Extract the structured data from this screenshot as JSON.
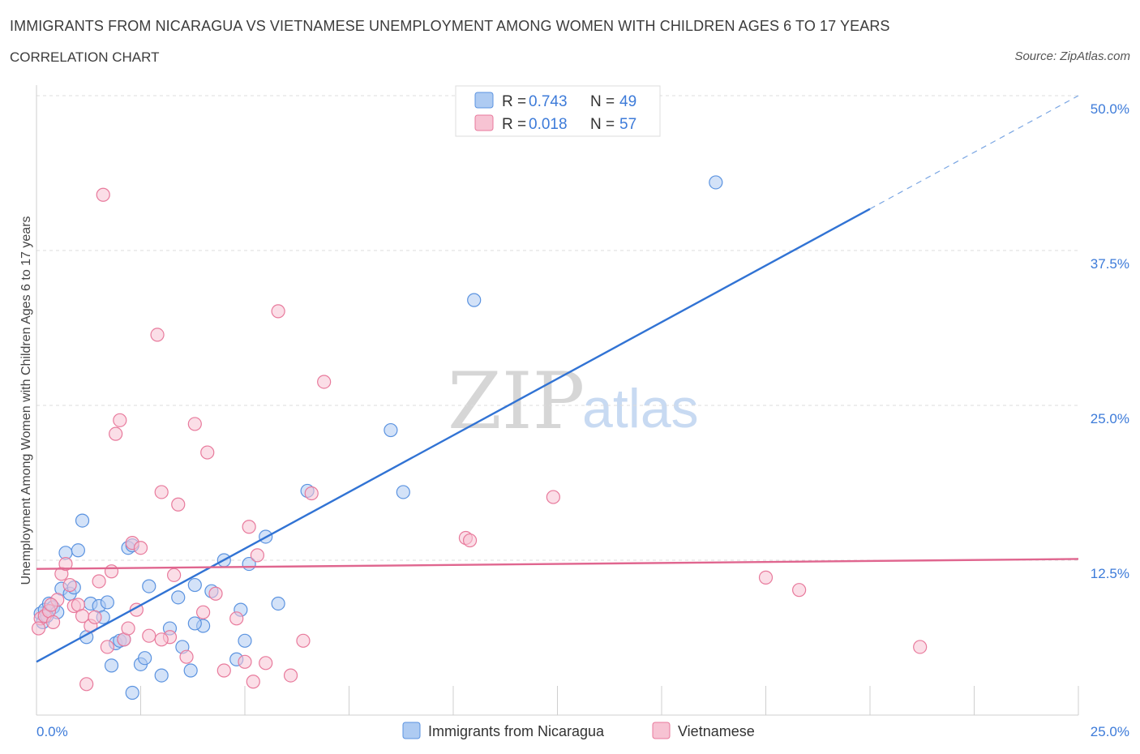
{
  "header": {
    "title": "IMMIGRANTS FROM NICARAGUA VS VIETNAMESE UNEMPLOYMENT AMONG WOMEN WITH CHILDREN AGES 6 TO 17 YEARS",
    "subtitle": "CORRELATION CHART",
    "source": "Source: ZipAtlas.com"
  },
  "watermark": {
    "zip": "ZIP",
    "atlas": "atlas"
  },
  "legend": {
    "r_label": "R = ",
    "n_label": "N = ",
    "rows": [
      {
        "r": "0.743",
        "n": "49"
      },
      {
        "r": "0.018",
        "n": "57"
      }
    ]
  },
  "chart_data": {
    "type": "scatter",
    "title": "IMMIGRANTS FROM NICARAGUA VS VIETNAMESE UNEMPLOYMENT AMONG WOMEN WITH CHILDREN AGES 6 TO 17 YEARS",
    "xlabel": "",
    "ylabel": "Unemployment Among Women with Children Ages 6 to 17 years",
    "xlim": [
      0,
      25
    ],
    "ylim": [
      0,
      50
    ],
    "x_tick_labels": [
      "0.0%",
      "25.0%"
    ],
    "y_tick_labels": [
      "12.5%",
      "25.0%",
      "37.5%",
      "50.0%"
    ],
    "y_tick_values": [
      12.5,
      25,
      37.5,
      50
    ],
    "legend_position": "top-center",
    "series": [
      {
        "name": "Immigrants from Nicaragua",
        "color": "#5b93e0",
        "fill": "#aecbf2",
        "r": 0.743,
        "n": 49,
        "trend": {
          "x0": 0,
          "y0": 4.3,
          "x1": 25,
          "y1": 50,
          "solid_until_x": 20
        },
        "points": [
          [
            0.1,
            8.2
          ],
          [
            0.2,
            8.5
          ],
          [
            0.3,
            9.0
          ],
          [
            0.4,
            8.7
          ],
          [
            0.5,
            8.3
          ],
          [
            0.6,
            10.2
          ],
          [
            0.7,
            13.1
          ],
          [
            0.8,
            9.8
          ],
          [
            0.9,
            10.3
          ],
          [
            1.0,
            13.3
          ],
          [
            1.1,
            15.7
          ],
          [
            1.2,
            6.3
          ],
          [
            1.3,
            9.0
          ],
          [
            1.5,
            8.8
          ],
          [
            1.6,
            7.9
          ],
          [
            1.7,
            9.1
          ],
          [
            1.8,
            4.0
          ],
          [
            1.9,
            5.8
          ],
          [
            2.0,
            6.0
          ],
          [
            2.1,
            6.1
          ],
          [
            2.2,
            13.5
          ],
          [
            2.3,
            1.8
          ],
          [
            2.5,
            4.1
          ],
          [
            2.6,
            4.6
          ],
          [
            2.7,
            10.4
          ],
          [
            3.0,
            3.2
          ],
          [
            3.2,
            7.0
          ],
          [
            3.4,
            9.5
          ],
          [
            3.5,
            5.5
          ],
          [
            3.7,
            3.6
          ],
          [
            3.8,
            10.5
          ],
          [
            4.0,
            7.2
          ],
          [
            4.5,
            12.5
          ],
          [
            4.8,
            4.5
          ],
          [
            4.9,
            8.5
          ],
          [
            5.0,
            6.0
          ],
          [
            5.1,
            12.2
          ],
          [
            5.5,
            14.4
          ],
          [
            5.8,
            9.0
          ],
          [
            6.5,
            18.1
          ],
          [
            8.5,
            23.0
          ],
          [
            8.8,
            18.0
          ],
          [
            10.5,
            33.5
          ],
          [
            16.3,
            43.0
          ],
          [
            0.15,
            7.5
          ],
          [
            0.25,
            8.0
          ],
          [
            3.8,
            7.4
          ],
          [
            2.3,
            13.7
          ],
          [
            4.2,
            10.0
          ]
        ]
      },
      {
        "name": "Vietnamese",
        "color": "#e87a9c",
        "fill": "#f7c3d3",
        "r": 0.018,
        "n": 57,
        "trend": {
          "x0": 0,
          "y0": 11.8,
          "x1": 25,
          "y1": 12.6
        },
        "points": [
          [
            0.1,
            7.8
          ],
          [
            0.2,
            8.0
          ],
          [
            0.3,
            8.4
          ],
          [
            0.4,
            7.5
          ],
          [
            0.5,
            9.3
          ],
          [
            0.6,
            11.4
          ],
          [
            0.7,
            12.2
          ],
          [
            0.8,
            10.5
          ],
          [
            0.9,
            8.8
          ],
          [
            1.0,
            8.9
          ],
          [
            1.1,
            8.0
          ],
          [
            1.2,
            2.5
          ],
          [
            1.3,
            7.2
          ],
          [
            1.4,
            7.9
          ],
          [
            1.5,
            10.8
          ],
          [
            1.6,
            42.0
          ],
          [
            1.7,
            5.5
          ],
          [
            1.8,
            11.6
          ],
          [
            1.9,
            22.7
          ],
          [
            2.0,
            23.8
          ],
          [
            2.1,
            6.1
          ],
          [
            2.2,
            7.0
          ],
          [
            2.3,
            13.9
          ],
          [
            2.4,
            8.5
          ],
          [
            2.5,
            13.5
          ],
          [
            2.7,
            6.4
          ],
          [
            2.9,
            30.7
          ],
          [
            3.0,
            18.0
          ],
          [
            3.2,
            6.3
          ],
          [
            3.3,
            11.3
          ],
          [
            3.4,
            17.0
          ],
          [
            3.6,
            4.7
          ],
          [
            3.8,
            23.5
          ],
          [
            4.0,
            8.3
          ],
          [
            4.1,
            21.2
          ],
          [
            4.3,
            9.8
          ],
          [
            4.5,
            3.6
          ],
          [
            4.8,
            7.8
          ],
          [
            5.0,
            4.3
          ],
          [
            5.1,
            15.2
          ],
          [
            5.2,
            2.7
          ],
          [
            5.3,
            12.9
          ],
          [
            5.8,
            32.6
          ],
          [
            6.1,
            3.2
          ],
          [
            6.4,
            6.0
          ],
          [
            6.6,
            17.9
          ],
          [
            6.9,
            26.9
          ],
          [
            10.3,
            14.3
          ],
          [
            10.4,
            14.1
          ],
          [
            12.4,
            17.6
          ],
          [
            17.5,
            11.1
          ],
          [
            18.3,
            10.1
          ],
          [
            21.2,
            5.5
          ],
          [
            0.05,
            7.0
          ],
          [
            0.35,
            8.9
          ],
          [
            3.0,
            6.1
          ],
          [
            5.5,
            4.2
          ]
        ]
      }
    ]
  }
}
